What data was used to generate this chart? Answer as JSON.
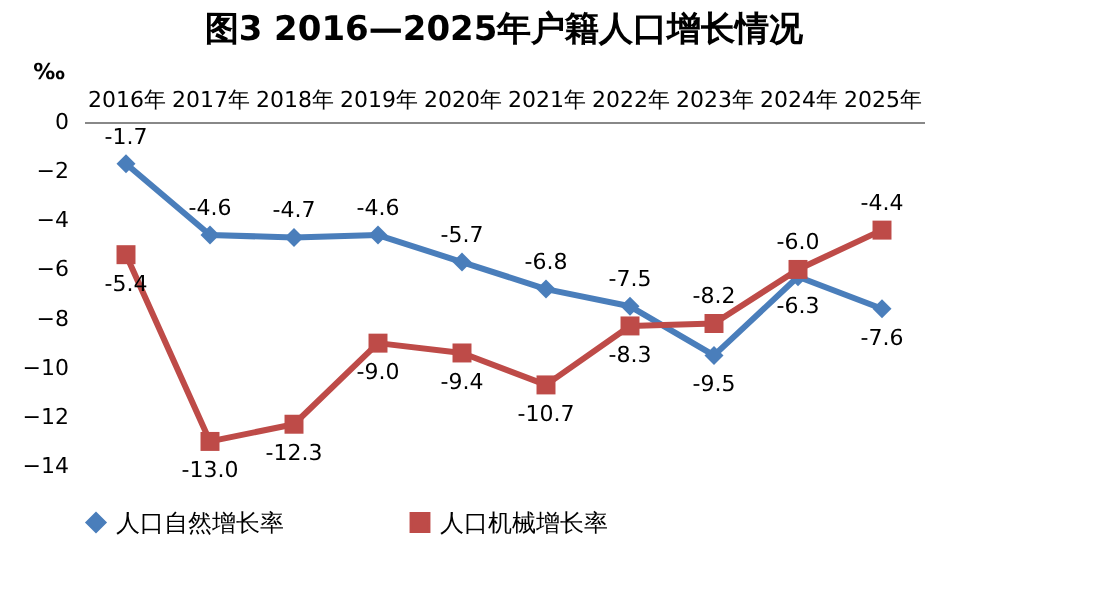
{
  "chart_data": {
    "type": "line",
    "title": "图3  2016—2025年户籍人口增长情况",
    "ylabel": "‰",
    "categories": [
      "2016年",
      "2017年",
      "2018年",
      "2019年",
      "2020年",
      "2021年",
      "2022年",
      "2023年",
      "2024年",
      "2025年"
    ],
    "series": [
      {
        "name": "人口自然增长率",
        "color": "#4a7ebb",
        "marker": "diamond",
        "values": [
          -1.7,
          -4.6,
          -4.7,
          -4.6,
          -5.7,
          -6.8,
          -7.5,
          -9.5,
          -6.3,
          -7.6
        ]
      },
      {
        "name": "人口机械增长率",
        "color": "#be4b48",
        "marker": "square",
        "values": [
          -5.4,
          -13.0,
          -12.3,
          -9.0,
          -9.4,
          -10.7,
          -8.3,
          -8.2,
          -6.0,
          -4.4
        ],
        "value_labels": [
          "-5.4",
          "-13.0",
          "-12.3",
          "-9.0",
          "-9.4",
          "-10.7",
          "-8.3",
          "-8.2",
          "-6.0",
          "-4.4"
        ]
      }
    ],
    "ylim": [
      -14,
      0
    ],
    "yticks": [
      0,
      -2,
      -4,
      -6,
      -8,
      -10,
      -12,
      -14
    ],
    "grid": false,
    "legend": "bottom",
    "data_labels": true
  }
}
